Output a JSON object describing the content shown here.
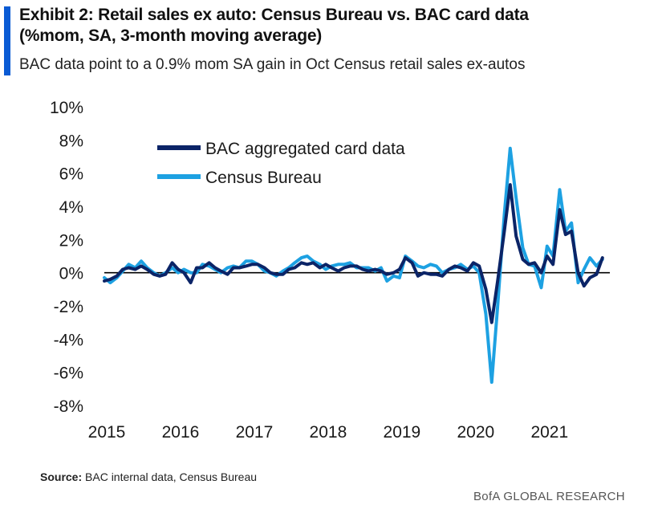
{
  "header": {
    "title_line1": "Exhibit 2: Retail sales ex auto: Census Bureau vs. BAC card data",
    "title_line2": "(%mom, SA, 3-month moving average)",
    "subtitle": "BAC data point to a 0.9% mom SA gain in Oct Census retail sales ex-autos"
  },
  "footer": {
    "source_label": "Source:",
    "source_text": "BAC internal data, Census  Bureau",
    "brand": "BofA GLOBAL RESEARCH"
  },
  "colors": {
    "accent": "#0a5bd4",
    "bac_series": "#0b2467",
    "census_series": "#1da1e2",
    "zero_line": "#000000"
  },
  "chart_data": {
    "type": "line",
    "title": "Exhibit 2: Retail sales ex auto: Census Bureau vs. BAC card data (%mom, SA, 3-month moving average)",
    "xlabel": "",
    "ylabel": "",
    "xlim": [
      2015,
      2021.85
    ],
    "ylim": [
      -8,
      10
    ],
    "y_ticks": [
      "10%",
      "8%",
      "6%",
      "4%",
      "2%",
      "0%",
      "-2%",
      "-4%",
      "-6%",
      "-8%"
    ],
    "y_tick_values": [
      10,
      8,
      6,
      4,
      2,
      0,
      -2,
      -4,
      -6,
      -8
    ],
    "x_tick_labels": [
      "2015",
      "2016",
      "2017",
      "2018",
      "2019",
      "2020",
      "2021"
    ],
    "x_tick_values": [
      2015,
      2016,
      2017,
      2018,
      2019,
      2020,
      2021
    ],
    "grid": false,
    "legend_position": "top-left",
    "series": [
      {
        "name": "BAC aggregated card data",
        "color": "#0b2467",
        "x": [
          2015.0,
          2015.08,
          2015.17,
          2015.25,
          2015.33,
          2015.42,
          2015.5,
          2015.58,
          2015.67,
          2015.75,
          2015.83,
          2015.92,
          2016.0,
          2016.08,
          2016.17,
          2016.25,
          2016.33,
          2016.42,
          2016.5,
          2016.58,
          2016.67,
          2016.75,
          2016.83,
          2016.92,
          2017.0,
          2017.08,
          2017.17,
          2017.25,
          2017.33,
          2017.42,
          2017.5,
          2017.58,
          2017.67,
          2017.75,
          2017.83,
          2017.92,
          2018.0,
          2018.08,
          2018.17,
          2018.25,
          2018.33,
          2018.42,
          2018.5,
          2018.58,
          2018.67,
          2018.75,
          2018.83,
          2018.92,
          2019.0,
          2019.08,
          2019.17,
          2019.25,
          2019.33,
          2019.42,
          2019.5,
          2019.58,
          2019.67,
          2019.75,
          2019.83,
          2019.92,
          2020.0,
          2020.08,
          2020.17,
          2020.25,
          2020.33,
          2020.42,
          2020.5,
          2020.58,
          2020.67,
          2020.75,
          2020.83,
          2020.92,
          2021.0,
          2021.08,
          2021.17,
          2021.25,
          2021.33,
          2021.42,
          2021.5,
          2021.58,
          2021.67,
          2021.75
        ],
        "values": [
          -0.5,
          -0.4,
          -0.2,
          0.2,
          0.3,
          0.2,
          0.4,
          0.2,
          -0.1,
          -0.2,
          -0.1,
          0.6,
          0.2,
          0.0,
          -0.6,
          0.3,
          0.3,
          0.6,
          0.3,
          0.1,
          -0.1,
          0.3,
          0.3,
          0.4,
          0.5,
          0.5,
          0.3,
          0.0,
          -0.1,
          -0.1,
          0.2,
          0.3,
          0.6,
          0.5,
          0.6,
          0.3,
          0.5,
          0.3,
          0.1,
          0.3,
          0.4,
          0.4,
          0.2,
          0.1,
          0.2,
          0.1,
          -0.1,
          0.0,
          0.2,
          0.9,
          0.6,
          -0.2,
          0.0,
          -0.1,
          -0.1,
          -0.2,
          0.2,
          0.4,
          0.3,
          0.1,
          0.6,
          0.4,
          -1.0,
          -3.0,
          -0.5,
          2.5,
          5.3,
          2.2,
          0.8,
          0.5,
          0.6,
          0.0,
          1.0,
          0.5,
          3.8,
          2.3,
          2.5,
          0.0,
          -0.8,
          -0.3,
          -0.1,
          0.9
        ]
      },
      {
        "name": "Census Bureau",
        "color": "#1da1e2",
        "x": [
          2015.0,
          2015.08,
          2015.17,
          2015.25,
          2015.33,
          2015.42,
          2015.5,
          2015.58,
          2015.67,
          2015.75,
          2015.83,
          2015.92,
          2016.0,
          2016.08,
          2016.17,
          2016.25,
          2016.33,
          2016.42,
          2016.5,
          2016.58,
          2016.67,
          2016.75,
          2016.83,
          2016.92,
          2017.0,
          2017.08,
          2017.17,
          2017.25,
          2017.33,
          2017.42,
          2017.5,
          2017.58,
          2017.67,
          2017.75,
          2017.83,
          2017.92,
          2018.0,
          2018.08,
          2018.17,
          2018.25,
          2018.33,
          2018.42,
          2018.5,
          2018.58,
          2018.67,
          2018.75,
          2018.83,
          2018.92,
          2019.0,
          2019.08,
          2019.17,
          2019.25,
          2019.33,
          2019.42,
          2019.5,
          2019.58,
          2019.67,
          2019.75,
          2019.83,
          2019.92,
          2020.0,
          2020.08,
          2020.17,
          2020.25,
          2020.33,
          2020.42,
          2020.5,
          2020.58,
          2020.67,
          2020.75,
          2020.83,
          2020.92,
          2021.0,
          2021.08,
          2021.17,
          2021.25,
          2021.33,
          2021.42,
          2021.5,
          2021.58,
          2021.67,
          2021.75
        ],
        "values": [
          -0.3,
          -0.6,
          -0.3,
          0.1,
          0.5,
          0.3,
          0.7,
          0.3,
          0.0,
          -0.2,
          0.0,
          0.3,
          0.0,
          0.2,
          0.0,
          0.0,
          0.5,
          0.4,
          0.2,
          0.0,
          0.3,
          0.4,
          0.3,
          0.7,
          0.7,
          0.5,
          0.1,
          0.0,
          -0.2,
          0.1,
          0.3,
          0.6,
          0.9,
          1.0,
          0.7,
          0.5,
          0.2,
          0.4,
          0.5,
          0.5,
          0.6,
          0.3,
          0.3,
          0.3,
          0.1,
          0.3,
          -0.5,
          -0.2,
          -0.3,
          1.0,
          0.7,
          0.4,
          0.3,
          0.5,
          0.4,
          0.0,
          0.2,
          0.3,
          0.5,
          0.2,
          0.4,
          0.0,
          -2.5,
          -6.6,
          -2.0,
          3.5,
          7.5,
          4.5,
          1.5,
          0.5,
          0.4,
          -0.9,
          1.6,
          1.0,
          5.0,
          2.5,
          3.0,
          -0.6,
          0.2,
          0.9,
          0.4,
          0.8
        ]
      }
    ]
  }
}
